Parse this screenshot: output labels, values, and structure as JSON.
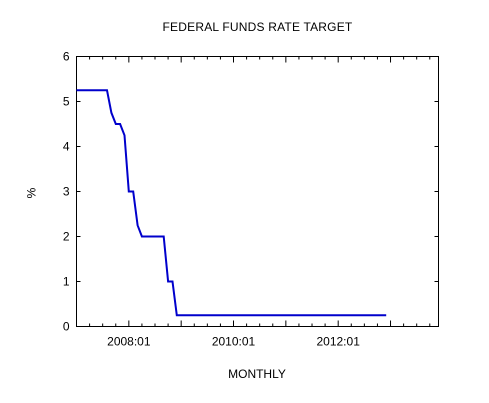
{
  "chart_data": {
    "type": "line",
    "title": "FEDERAL FUNDS RATE TARGET",
    "xlabel": "MONTHLY",
    "ylabel": "%",
    "ylim": [
      0,
      6
    ],
    "xlim": [
      "2007-01",
      "2013-12"
    ],
    "yticks": [
      "0",
      "1",
      "2",
      "3",
      "4",
      "5",
      "6"
    ],
    "xticks": [
      "2008:01",
      "2010:01",
      "2012:01"
    ],
    "grid": false,
    "legend": "none",
    "line_color": "#0000cc",
    "series": [
      {
        "x": [
          "2007-01",
          "2007-07",
          "2007-08",
          "2007-09",
          "2007-10",
          "2007-11",
          "2007-12",
          "2008-01",
          "2008-02",
          "2008-03",
          "2008-04",
          "2008-05",
          "2008-06",
          "2008-07",
          "2008-08",
          "2008-09",
          "2008-10",
          "2008-11",
          "2008-12",
          "2009-12",
          "2010-12",
          "2011-12",
          "2012-12"
        ],
        "values": [
          5.25,
          5.25,
          5.25,
          4.75,
          4.5,
          4.5,
          4.25,
          3.0,
          3.0,
          2.25,
          2.0,
          2.0,
          2.0,
          2.0,
          2.0,
          2.0,
          1.0,
          1.0,
          0.25,
          0.25,
          0.25,
          0.25,
          0.25
        ]
      }
    ]
  }
}
